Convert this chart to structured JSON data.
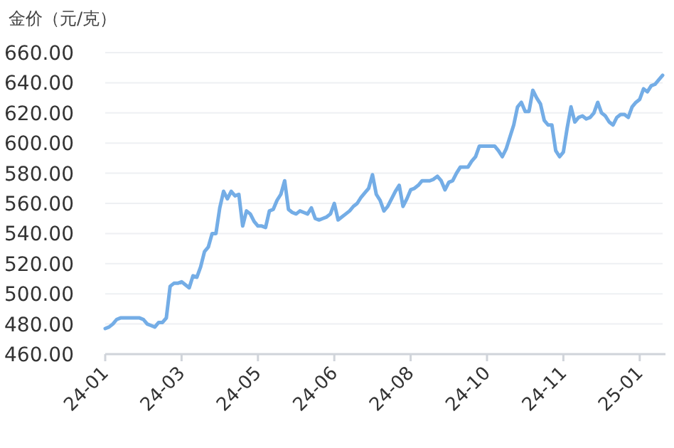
{
  "chart_data": {
    "type": "line",
    "ylabel": "金价（元/克）",
    "categories": [
      "24-01",
      null,
      null,
      null,
      null,
      null,
      null,
      null,
      null,
      null,
      null,
      null,
      null,
      null,
      null,
      null,
      null,
      null,
      null,
      null,
      "24-03",
      null,
      null,
      null,
      null,
      null,
      null,
      null,
      null,
      null,
      null,
      null,
      null,
      null,
      null,
      null,
      null,
      null,
      null,
      null,
      "24-05",
      null,
      null,
      null,
      null,
      null,
      null,
      null,
      null,
      null,
      null,
      null,
      null,
      null,
      null,
      null,
      null,
      null,
      null,
      null,
      "24-06",
      null,
      null,
      null,
      null,
      null,
      null,
      null,
      null,
      null,
      null,
      null,
      null,
      null,
      null,
      null,
      null,
      null,
      null,
      null,
      "24-08",
      null,
      null,
      null,
      null,
      null,
      null,
      null,
      null,
      null,
      null,
      null,
      null,
      null,
      null,
      null,
      null,
      null,
      null,
      null,
      "24-10",
      null,
      null,
      null,
      null,
      null,
      null,
      null,
      null,
      null,
      null,
      null,
      null,
      null,
      null,
      null,
      null,
      null,
      null,
      null,
      "24-11",
      null,
      null,
      null,
      null,
      null,
      null,
      null,
      null,
      null,
      null,
      null,
      null,
      null,
      null,
      null,
      null,
      null,
      null,
      null,
      "25-01",
      null,
      null,
      null,
      null,
      null,
      null
    ],
    "series": [
      {
        "color": "#74ade6",
        "values": [
          477,
          478,
          480,
          483,
          484,
          484,
          484,
          484,
          484,
          484,
          483,
          480,
          479,
          478,
          481,
          481,
          484,
          505,
          507,
          507,
          508,
          506,
          504,
          512,
          511,
          518,
          528,
          531,
          540,
          540,
          557,
          568,
          563,
          568,
          565,
          566,
          545,
          555,
          553,
          548,
          545,
          545,
          544,
          555,
          556,
          562,
          566,
          575,
          556,
          554,
          553,
          555,
          554,
          553,
          557,
          550,
          549,
          550,
          551,
          553,
          560,
          549,
          551,
          553,
          555,
          558,
          560,
          564,
          567,
          570,
          579,
          566,
          562,
          555,
          558,
          563,
          568,
          572,
          558,
          563,
          569,
          570,
          572,
          575,
          575,
          575,
          576,
          578,
          575,
          569,
          574,
          575,
          580,
          584,
          584,
          584,
          588,
          591,
          598,
          598,
          598,
          598,
          598,
          595,
          591,
          596,
          604,
          612,
          624,
          627,
          621,
          621,
          635,
          630,
          626,
          615,
          612,
          612,
          595,
          591,
          594,
          610,
          624,
          614,
          617,
          618,
          616,
          617,
          620,
          627,
          620,
          618,
          614,
          612,
          617,
          619,
          619,
          617,
          624,
          627,
          629,
          636,
          634,
          638,
          639,
          642,
          645
        ]
      }
    ],
    "ylim": [
      460,
      660
    ],
    "yticks": [
      {
        "value": 460,
        "label": "460.00"
      },
      {
        "value": 480,
        "label": "480.00"
      },
      {
        "value": 500,
        "label": "500.00"
      },
      {
        "value": 520,
        "label": "520.00"
      },
      {
        "value": 540,
        "label": "540.00"
      },
      {
        "value": 560,
        "label": "560.00"
      },
      {
        "value": 580,
        "label": "580.00"
      },
      {
        "value": 600,
        "label": "600.00"
      },
      {
        "value": 620,
        "label": "620.00"
      },
      {
        "value": 640,
        "label": "640.00"
      },
      {
        "value": 660,
        "label": "660.00"
      }
    ],
    "grid": "y"
  }
}
